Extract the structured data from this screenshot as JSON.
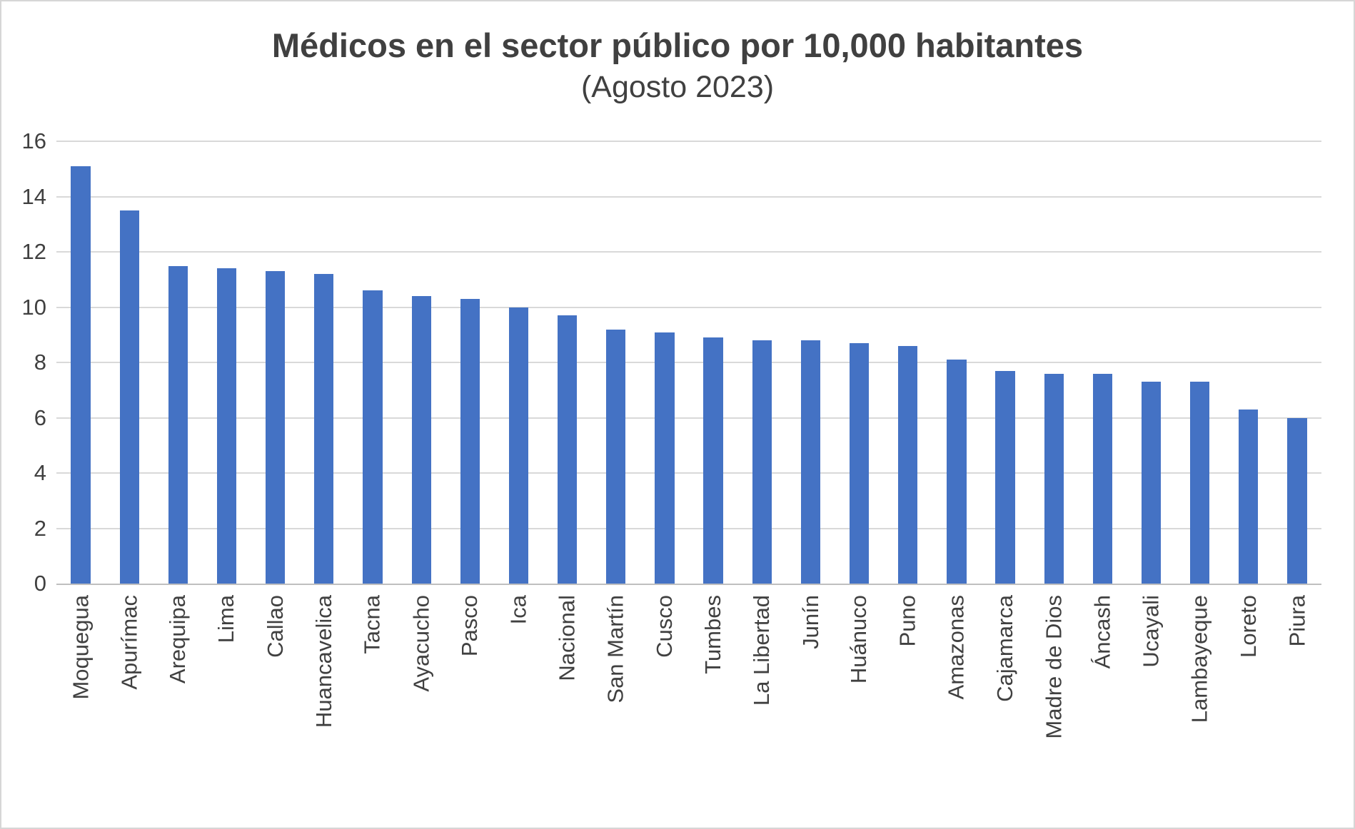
{
  "chart_data": {
    "type": "bar",
    "title": "Médicos en el sector público por 10,000 habitantes",
    "subtitle": "(Agosto 2023)",
    "categories": [
      "Moquegua",
      "Apurímac",
      "Arequipa",
      "Lima",
      "Callao",
      "Huancavelica",
      "Tacna",
      "Ayacucho",
      "Pasco",
      "Ica",
      "Nacional",
      "San Martín",
      "Cusco",
      "Tumbes",
      "La Libertad",
      "Junín",
      "Huánuco",
      "Puno",
      "Amazonas",
      "Cajamarca",
      "Madre de Dios",
      "Áncash",
      "Ucayali",
      "Lambayeque",
      "Loreto",
      "Piura"
    ],
    "values": [
      15.1,
      13.5,
      11.5,
      11.4,
      11.3,
      11.2,
      10.6,
      10.4,
      10.3,
      10.0,
      9.7,
      9.2,
      9.1,
      8.9,
      8.8,
      8.8,
      8.7,
      8.6,
      8.1,
      7.7,
      7.6,
      7.6,
      7.3,
      7.3,
      6.3,
      6.0
    ],
    "xlabel": "",
    "ylabel": "",
    "ylim": [
      0,
      16
    ],
    "yticks": [
      0,
      2,
      4,
      6,
      8,
      10,
      12,
      14,
      16
    ],
    "grid": true,
    "legend": false,
    "bar_color": "#4472C4",
    "gridline_color": "#d9d9d9",
    "axis_color": "#bfbfbf",
    "text_color": "#404040"
  }
}
